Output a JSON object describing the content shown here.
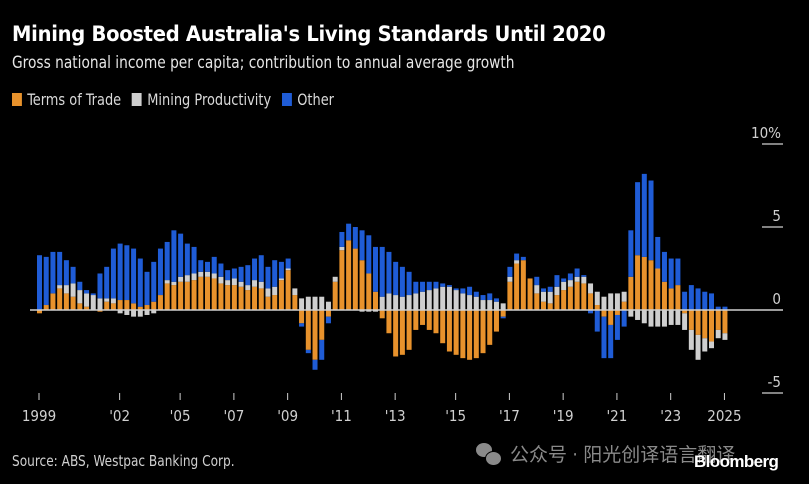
{
  "header": {
    "title": "Mining Boosted Australia's Living Standards Until 2020",
    "subtitle": "Gross national income per capita; contribution to annual average growth"
  },
  "legend": [
    {
      "label": "Terms of Trade",
      "color": "#e8922c"
    },
    {
      "label": "Mining Productivity",
      "color": "#cfcfcf"
    },
    {
      "label": "Other",
      "color": "#1f5cd6"
    }
  ],
  "footer": {
    "source": "Source: ABS, Westpac Banking Corp.",
    "watermark": "公众号 · 阳光创译语言翻译",
    "brand": "Bloomberg"
  },
  "chart_data": {
    "type": "bar",
    "stacked": true,
    "title": "Mining Boosted Australia's Living Standards Until 2020",
    "subtitle": "Gross national income per capita; contribution to annual average growth",
    "xlabel": "",
    "ylabel": "",
    "ylim": [
      -5,
      10
    ],
    "y_unit": "%",
    "y_ticks": [
      {
        "value": 10,
        "label": "10%"
      },
      {
        "value": 5,
        "label": "5"
      },
      {
        "value": 0,
        "label": "0"
      },
      {
        "value": -5,
        "label": "-5"
      }
    ],
    "x_ticks": [
      {
        "index": 0,
        "label": "1999"
      },
      {
        "index": 12,
        "label": "'02"
      },
      {
        "index": 21,
        "label": "'05"
      },
      {
        "index": 29,
        "label": "'07"
      },
      {
        "index": 37,
        "label": "'09"
      },
      {
        "index": 45,
        "label": "'11"
      },
      {
        "index": 53,
        "label": "'13"
      },
      {
        "index": 62,
        "label": "'15"
      },
      {
        "index": 70,
        "label": "'17"
      },
      {
        "index": 78,
        "label": "'19"
      },
      {
        "index": 86,
        "label": "'21"
      },
      {
        "index": 94,
        "label": "'23"
      },
      {
        "index": 102,
        "label": "2025"
      }
    ],
    "y_axis_position": "right",
    "grid": false,
    "legend_position": "top-left",
    "frequency": "quarterly",
    "series": [
      {
        "name": "Terms of Trade",
        "color": "#e8922c",
        "values": [
          -0.2,
          0.3,
          1.0,
          1.3,
          1.0,
          0.8,
          0.4,
          0.2,
          0.0,
          -0.1,
          0.5,
          0.4,
          0.6,
          0.6,
          0.4,
          0.2,
          0.3,
          0.5,
          0.9,
          1.6,
          1.5,
          1.7,
          1.7,
          1.8,
          2.0,
          2.0,
          1.9,
          1.6,
          1.5,
          1.5,
          1.4,
          1.2,
          1.4,
          1.3,
          0.8,
          0.9,
          1.8,
          2.4,
          0.9,
          -0.8,
          -2.4,
          -3.0,
          -1.8,
          -0.4,
          1.7,
          3.6,
          4.2,
          3.7,
          3.0,
          2.2,
          1.1,
          -0.5,
          -1.4,
          -2.8,
          -2.7,
          -2.4,
          -1.2,
          -0.9,
          -1.2,
          -1.4,
          -2.0,
          -2.5,
          -2.7,
          -2.9,
          -3.0,
          -2.9,
          -2.6,
          -2.1,
          -1.3,
          -0.4,
          1.7,
          2.8,
          3.0,
          1.9,
          1.0,
          0.5,
          0.4,
          0.9,
          1.2,
          1.4,
          1.7,
          1.6,
          1.0,
          0.3,
          -0.4,
          -0.9,
          -0.3,
          0.5,
          2.0,
          3.3,
          3.2,
          3.0,
          2.5,
          1.7,
          1.3,
          1.5,
          -0.2,
          -1.2,
          -1.5,
          -1.7,
          -1.9,
          -1.2,
          -1.4
        ],
        "note": "approximate, read from bar heights"
      },
      {
        "name": "Mining Productivity",
        "color": "#cfcfcf",
        "values": [
          0.0,
          0.0,
          0.0,
          0.2,
          0.5,
          0.8,
          0.8,
          0.8,
          0.9,
          0.7,
          0.2,
          0.3,
          -0.2,
          -0.3,
          -0.4,
          -0.4,
          -0.3,
          -0.2,
          0.0,
          0.2,
          0.2,
          0.3,
          0.4,
          0.4,
          0.3,
          0.3,
          0.3,
          0.4,
          0.3,
          0.4,
          0.3,
          0.3,
          0.4,
          0.4,
          0.5,
          0.5,
          0.1,
          0.1,
          0.4,
          0.7,
          0.8,
          0.8,
          0.8,
          0.5,
          0.3,
          0.2,
          0.0,
          0.0,
          -0.1,
          -0.1,
          -0.1,
          0.8,
          1.0,
          0.9,
          0.8,
          0.9,
          1.0,
          1.1,
          1.2,
          1.3,
          1.4,
          1.4,
          1.2,
          1.0,
          0.9,
          0.8,
          0.6,
          0.6,
          0.5,
          0.4,
          0.3,
          0.2,
          0.0,
          0.0,
          0.5,
          0.6,
          0.7,
          0.5,
          0.5,
          0.4,
          0.3,
          0.4,
          0.6,
          0.8,
          0.8,
          1.0,
          1.0,
          0.6,
          -0.4,
          -0.6,
          -0.8,
          -1.0,
          -1.0,
          -1.0,
          -0.9,
          -0.9,
          -1.0,
          -1.2,
          -1.5,
          -0.8,
          -0.4,
          -0.5,
          -0.4
        ],
        "note": "approximate, read from bar heights"
      },
      {
        "name": "Other",
        "color": "#1f5cd6",
        "values": [
          3.3,
          2.9,
          2.5,
          2.0,
          1.5,
          1.0,
          0.5,
          0.2,
          0.1,
          1.5,
          1.9,
          3.0,
          3.4,
          3.3,
          3.3,
          2.9,
          2.0,
          2.4,
          2.8,
          2.3,
          3.1,
          2.6,
          1.9,
          1.6,
          0.7,
          0.6,
          1.0,
          0.8,
          0.6,
          0.6,
          0.9,
          1.2,
          1.3,
          1.6,
          1.3,
          1.6,
          1.0,
          0.6,
          0.0,
          -0.2,
          -0.2,
          -0.6,
          -1.2,
          -0.4,
          0.0,
          0.9,
          1.0,
          1.3,
          1.8,
          2.3,
          2.7,
          3.0,
          2.5,
          2.0,
          1.8,
          1.4,
          0.7,
          0.6,
          0.5,
          0.4,
          0.2,
          0.1,
          0.1,
          0.3,
          0.5,
          0.3,
          0.3,
          0.4,
          0.2,
          -0.1,
          0.6,
          0.4,
          0.2,
          0.0,
          0.5,
          0.2,
          0.3,
          0.7,
          0.2,
          0.4,
          0.5,
          0.1,
          -0.2,
          -1.3,
          -2.5,
          -2.0,
          -1.5,
          -1.0,
          2.8,
          4.4,
          5.0,
          4.8,
          1.9,
          1.8,
          1.8,
          1.6,
          1.1,
          1.5,
          1.3,
          1.1,
          1.0,
          0.2,
          0.2
        ],
        "note": "approximate, read from bar heights; negative when below zero stack"
      }
    ]
  }
}
